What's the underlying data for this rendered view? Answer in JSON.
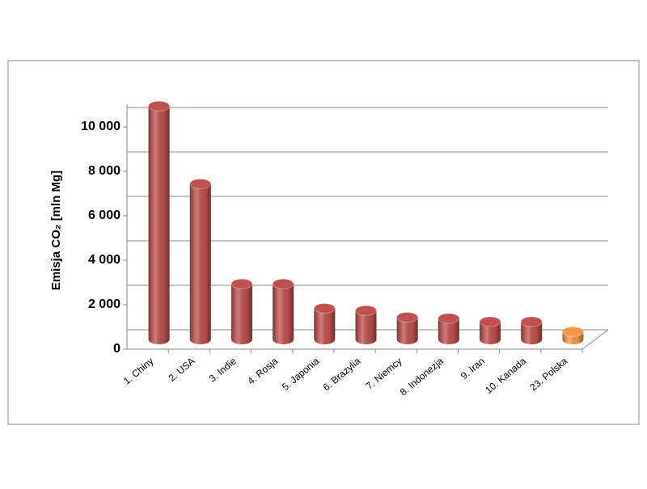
{
  "chart_data": {
    "type": "bar3d",
    "ylabel": "Emisja  CO₂ [mln Mg]",
    "categories": [
      "1. Chiny",
      "2. USA",
      "3. Indie",
      "4. Rosja",
      "5. Japonia",
      "6. Brazylia",
      "7. Niemcy",
      "8. Indonezja",
      "9. Iran",
      "10. Kanada",
      "23. Polska"
    ],
    "values": [
      10500,
      7000,
      2500,
      2500,
      1400,
      1300,
      1000,
      950,
      800,
      800,
      350
    ],
    "colors": [
      "#c0504d",
      "#c0504d",
      "#c0504d",
      "#c0504d",
      "#c0504d",
      "#c0504d",
      "#c0504d",
      "#c0504d",
      "#c0504d",
      "#c0504d",
      "#f79646"
    ],
    "ylim": [
      0,
      10000
    ],
    "yticks": [
      0,
      {
        "value": 2000,
        "label": "2 000"
      },
      {
        "value": 4000,
        "label": "4 000"
      },
      {
        "value": 6000,
        "label": "6 000"
      },
      {
        "value": 8000,
        "label": "8 000"
      },
      {
        "value": 10000,
        "label": "10 000"
      }
    ],
    "grid": true
  }
}
